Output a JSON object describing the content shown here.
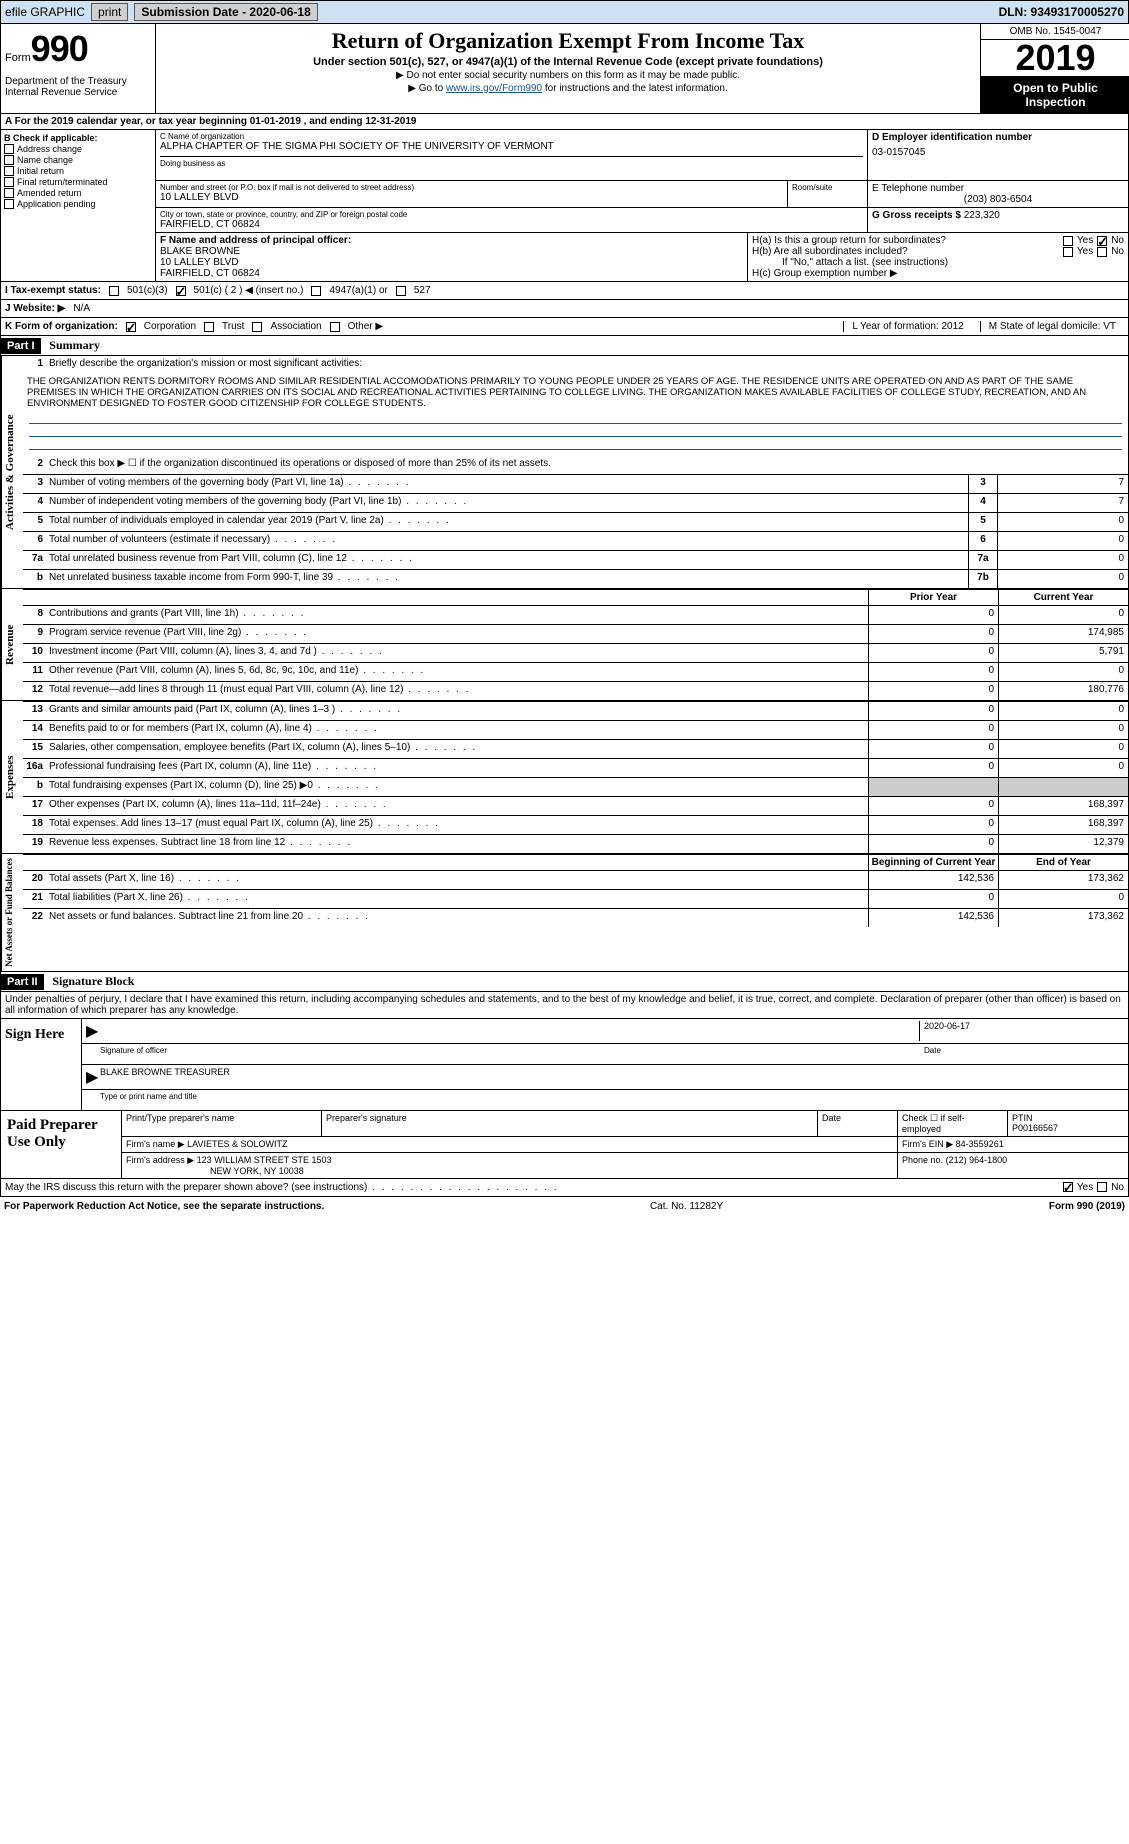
{
  "topbar": {
    "efile": "efile GRAPHIC",
    "print": "print",
    "subdate_label": "Submission Date - 2020-06-18",
    "dln_label": "DLN: 93493170005270"
  },
  "header": {
    "form_prefix": "Form",
    "form_num": "990",
    "dept": "Department of the Treasury\nInternal Revenue Service",
    "title": "Return of Organization Exempt From Income Tax",
    "sub": "Under section 501(c), 527, or 4947(a)(1) of the Internal Revenue Code (except private foundations)",
    "note1": "▶ Do not enter social security numbers on this form as it may be made public.",
    "note2_pre": "▶ Go to ",
    "note2_link": "www.irs.gov/Form990",
    "note2_post": " for instructions and the latest information.",
    "omb": "OMB No. 1545-0047",
    "year": "2019",
    "inspect": "Open to Public Inspection"
  },
  "a_line": "A For the 2019 calendar year, or tax year beginning 01-01-2019   , and ending 12-31-2019",
  "box_b": {
    "title": "B Check if applicable:",
    "items": [
      "Address change",
      "Name change",
      "Initial return",
      "Final return/terminated",
      "Amended return",
      "Application pending"
    ]
  },
  "box_c": {
    "label": "C Name of organization",
    "name": "ALPHA CHAPTER OF THE SIGMA PHI SOCIETY OF THE UNIVERSITY OF VERMONT",
    "dba_label": "Doing business as",
    "addr_label": "Number and street (or P.O. box if mail is not delivered to street address)",
    "room_label": "Room/suite",
    "addr": "10 LALLEY BLVD",
    "city_label": "City or town, state or province, country, and ZIP or foreign postal code",
    "city": "FAIRFIELD, CT  06824"
  },
  "box_d": {
    "label": "D Employer identification number",
    "val": "03-0157045"
  },
  "box_e": {
    "label": "E Telephone number",
    "val": "(203) 803-6504"
  },
  "box_g": {
    "label": "G Gross receipts $",
    "val": "223,320"
  },
  "box_f": {
    "label": "F Name and address of principal officer:",
    "name": "BLAKE BROWNE",
    "addr1": "10 LALLEY BLVD",
    "addr2": "FAIRFIELD, CT  06824"
  },
  "box_h": {
    "a": "H(a)  Is this a group return for subordinates?",
    "b": "H(b)  Are all subordinates included?",
    "b_note": "If \"No,\" attach a list. (see instructions)",
    "c": "H(c)  Group exemption number ▶",
    "yes": "Yes",
    "no": "No"
  },
  "i_line": {
    "label": "I   Tax-exempt status:",
    "o1": "501(c)(3)",
    "o2": "501(c) ( 2 ) ◀ (insert no.)",
    "o3": "4947(a)(1) or",
    "o4": "527"
  },
  "j_line": {
    "label": "J   Website: ▶",
    "val": "N/A"
  },
  "k_line": {
    "label": "K Form of organization:",
    "o1": "Corporation",
    "o2": "Trust",
    "o3": "Association",
    "o4": "Other ▶",
    "l": "L Year of formation: 2012",
    "m": "M State of legal domicile: VT"
  },
  "part1": {
    "tag": "Part I",
    "title": "Summary"
  },
  "summary": {
    "q1": "Briefly describe the organization's mission or most significant activities:",
    "mission": "THE ORGANIZATION RENTS DORMITORY ROOMS AND SIMILAR RESIDENTIAL ACCOMODATIONS PRIMARILY TO YOUNG PEOPLE UNDER 25 YEARS OF AGE. THE RESIDENCE UNITS ARE OPERATED ON AND AS PART OF THE SAME PREMISES IN WHICH THE ORGANIZATION CARRIES ON ITS SOCIAL AND RECREATIONAL ACTIVITIES PERTAINING TO COLLEGE LIVING. THE ORGANIZATION MAKES AVAILABLE FACILITIES OF COLLEGE STUDY, RECREATION, AND AN ENVIRONMENT DESIGNED TO FOSTER GOOD CITIZENSHIP FOR COLLEGE STUDENTS.",
    "q2": "Check this box ▶ ☐ if the organization discontinued its operations or disposed of more than 25% of its net assets.",
    "rows_gov": [
      {
        "n": "3",
        "d": "Number of voting members of the governing body (Part VI, line 1a)",
        "box": "3",
        "v": "7"
      },
      {
        "n": "4",
        "d": "Number of independent voting members of the governing body (Part VI, line 1b)",
        "box": "4",
        "v": "7"
      },
      {
        "n": "5",
        "d": "Total number of individuals employed in calendar year 2019 (Part V, line 2a)",
        "box": "5",
        "v": "0"
      },
      {
        "n": "6",
        "d": "Total number of volunteers (estimate if necessary)",
        "box": "6",
        "v": "0"
      },
      {
        "n": "7a",
        "d": "Total unrelated business revenue from Part VIII, column (C), line 12",
        "box": "7a",
        "v": "0"
      },
      {
        "n": "b",
        "d": "Net unrelated business taxable income from Form 990-T, line 39",
        "box": "7b",
        "v": "0"
      }
    ],
    "prior": "Prior Year",
    "current": "Current Year",
    "rows_rev": [
      {
        "n": "8",
        "d": "Contributions and grants (Part VIII, line 1h)",
        "p": "0",
        "c": "0"
      },
      {
        "n": "9",
        "d": "Program service revenue (Part VIII, line 2g)",
        "p": "0",
        "c": "174,985"
      },
      {
        "n": "10",
        "d": "Investment income (Part VIII, column (A), lines 3, 4, and 7d )",
        "p": "0",
        "c": "5,791"
      },
      {
        "n": "11",
        "d": "Other revenue (Part VIII, column (A), lines 5, 6d, 8c, 9c, 10c, and 11e)",
        "p": "0",
        "c": "0"
      },
      {
        "n": "12",
        "d": "Total revenue—add lines 8 through 11 (must equal Part VIII, column (A), line 12)",
        "p": "0",
        "c": "180,776"
      }
    ],
    "rows_exp": [
      {
        "n": "13",
        "d": "Grants and similar amounts paid (Part IX, column (A), lines 1–3 )",
        "p": "0",
        "c": "0"
      },
      {
        "n": "14",
        "d": "Benefits paid to or for members (Part IX, column (A), line 4)",
        "p": "0",
        "c": "0"
      },
      {
        "n": "15",
        "d": "Salaries, other compensation, employee benefits (Part IX, column (A), lines 5–10)",
        "p": "0",
        "c": "0"
      },
      {
        "n": "16a",
        "d": "Professional fundraising fees (Part IX, column (A), line 11e)",
        "p": "0",
        "c": "0"
      },
      {
        "n": "b",
        "d": "Total fundraising expenses (Part IX, column (D), line 25) ▶0",
        "p": "",
        "c": ""
      },
      {
        "n": "17",
        "d": "Other expenses (Part IX, column (A), lines 11a–11d, 11f–24e)",
        "p": "0",
        "c": "168,397"
      },
      {
        "n": "18",
        "d": "Total expenses. Add lines 13–17 (must equal Part IX, column (A), line 25)",
        "p": "0",
        "c": "168,397"
      },
      {
        "n": "19",
        "d": "Revenue less expenses. Subtract line 18 from line 12",
        "p": "0",
        "c": "12,379"
      }
    ],
    "begin": "Beginning of Current Year",
    "end": "End of Year",
    "rows_net": [
      {
        "n": "20",
        "d": "Total assets (Part X, line 16)",
        "p": "142,536",
        "c": "173,362"
      },
      {
        "n": "21",
        "d": "Total liabilities (Part X, line 26)",
        "p": "0",
        "c": "0"
      },
      {
        "n": "22",
        "d": "Net assets or fund balances. Subtract line 21 from line 20",
        "p": "142,536",
        "c": "173,362"
      }
    ]
  },
  "vert": {
    "gov": "Activities & Governance",
    "rev": "Revenue",
    "exp": "Expenses",
    "net": "Net Assets or Fund Balances"
  },
  "part2": {
    "tag": "Part II",
    "title": "Signature Block"
  },
  "sig": {
    "penalty": "Under penalties of perjury, I declare that I have examined this return, including accompanying schedules and statements, and to the best of my knowledge and belief, it is true, correct, and complete. Declaration of preparer (other than officer) is based on all information of which preparer has any knowledge.",
    "sign_here": "Sign Here",
    "sig_officer": "Signature of officer",
    "date": "Date",
    "date_val": "2020-06-17",
    "name_title": "BLAKE BROWNE TREASURER",
    "type_name": "Type or print name and title"
  },
  "prep": {
    "label": "Paid Preparer Use Only",
    "h1": "Print/Type preparer's name",
    "h2": "Preparer's signature",
    "h3": "Date",
    "h4": "Check ☐ if self-employed",
    "h5": "PTIN",
    "ptin": "P00166567",
    "firm_name_l": "Firm's name    ▶",
    "firm_name": "LAVIETES & SOLOWITZ",
    "firm_ein_l": "Firm's EIN ▶",
    "firm_ein": "84-3559261",
    "firm_addr_l": "Firm's address ▶",
    "firm_addr1": "123 WILLIAM STREET STE 1503",
    "firm_addr2": "NEW YORK, NY  10038",
    "phone_l": "Phone no.",
    "phone": "(212) 964-1800"
  },
  "discuss": "May the IRS discuss this return with the preparer shown above? (see instructions)",
  "footer": {
    "left": "For Paperwork Reduction Act Notice, see the separate instructions.",
    "mid": "Cat. No. 11282Y",
    "right": "Form 990 (2019)"
  }
}
